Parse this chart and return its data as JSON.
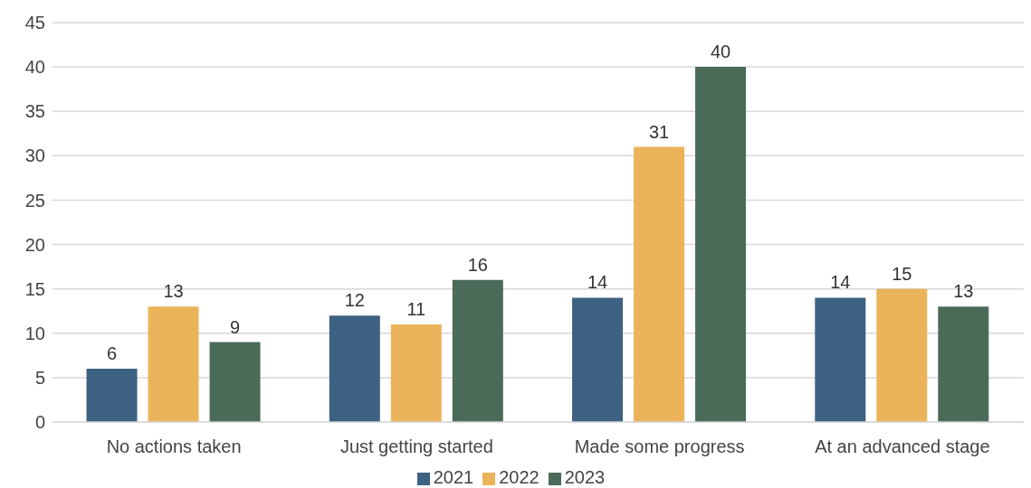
{
  "chart_data": {
    "type": "bar",
    "categories": [
      "No actions taken",
      "Just getting started",
      "Made some progress",
      "At an advanced stage"
    ],
    "series": [
      {
        "name": "2021",
        "color": "#3d6180",
        "values": [
          6,
          12,
          14,
          14
        ]
      },
      {
        "name": "2022",
        "color": "#ebb45a",
        "values": [
          13,
          11,
          31,
          15
        ]
      },
      {
        "name": "2023",
        "color": "#4b6b59",
        "values": [
          9,
          16,
          40,
          13
        ]
      }
    ],
    "ylim": [
      0,
      45
    ],
    "yticks": [
      0,
      5,
      10,
      15,
      20,
      25,
      30,
      35,
      40,
      45
    ],
    "grid": "y",
    "legend": "bottom",
    "data_labels": true
  }
}
